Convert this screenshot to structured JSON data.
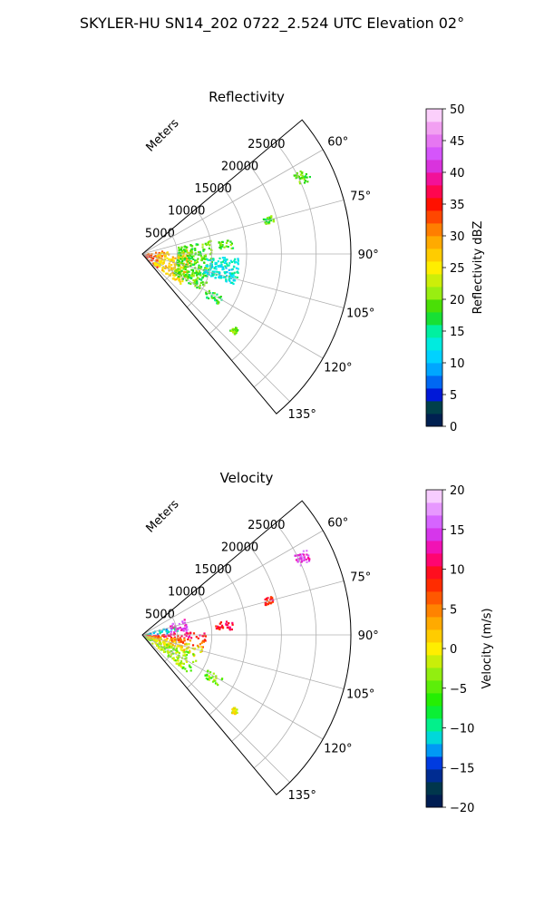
{
  "figure": {
    "suptitle": "SKYLER-HU  SN14_202  0722_2.524 UTC Elevation 02°"
  },
  "chart_data": [
    {
      "type": "polar-sector-heatmap",
      "title": "Reflectivity",
      "range_axis_label": "Meters",
      "range_ticks": [
        "5000",
        "10000",
        "15000",
        "20000",
        "25000"
      ],
      "range_tick_values": [
        5000,
        10000,
        15000,
        20000,
        25000
      ],
      "range_max": 30000,
      "azimuth_ticks": [
        "60°",
        "75°",
        "90°",
        "105°",
        "120°",
        "135°"
      ],
      "azimuth_tick_values": [
        60,
        75,
        90,
        105,
        120,
        135
      ],
      "azimuth_range": [
        50,
        140
      ],
      "grid": true,
      "colorbar": {
        "label": "Reflectivity dBZ",
        "min": 0,
        "max": 50,
        "ticks": [
          "0",
          "5",
          "10",
          "15",
          "20",
          "25",
          "30",
          "35",
          "40",
          "45",
          "50"
        ]
      },
      "echo_regions": [
        {
          "az": [
            80,
            138
          ],
          "range": [
            0,
            3000
          ],
          "value": 33
        },
        {
          "az": [
            83,
            130
          ],
          "range": [
            2000,
            7000
          ],
          "value": 27
        },
        {
          "az": [
            78,
            122
          ],
          "range": [
            5000,
            10000
          ],
          "value": 19
        },
        {
          "az": [
            92,
            108
          ],
          "range": [
            9000,
            14000
          ],
          "value": 13
        },
        {
          "az": [
            80,
            86
          ],
          "range": [
            11000,
            13000
          ],
          "value": 19
        },
        {
          "az": [
            73,
            76
          ],
          "range": [
            18000,
            19500
          ],
          "value": 19
        },
        {
          "az": [
            62,
            66
          ],
          "range": [
            24500,
            26500
          ],
          "value": 19
        },
        {
          "az": [
            118,
            124
          ],
          "range": [
            10500,
            13000
          ],
          "value": 17
        },
        {
          "az": [
            128,
            131
          ],
          "range": [
            16500,
            17500
          ],
          "value": 20
        }
      ]
    },
    {
      "type": "polar-sector-heatmap",
      "title": "Velocity",
      "range_axis_label": "Meters",
      "range_ticks": [
        "5000",
        "10000",
        "15000",
        "20000",
        "25000"
      ],
      "range_tick_values": [
        5000,
        10000,
        15000,
        20000,
        25000
      ],
      "range_max": 30000,
      "azimuth_ticks": [
        "60°",
        "75°",
        "90°",
        "105°",
        "120°",
        "135°"
      ],
      "azimuth_tick_values": [
        60,
        75,
        90,
        105,
        120,
        135
      ],
      "azimuth_range": [
        50,
        140
      ],
      "grid": true,
      "colorbar": {
        "label": "Velocity (m/s)",
        "min": -20,
        "max": 20,
        "ticks": [
          "−20",
          "−15",
          "−10",
          "−5",
          "0",
          "5",
          "10",
          "15",
          "20"
        ]
      },
      "echo_regions": [
        {
          "az": [
            70,
            85
          ],
          "range": [
            0,
            5000
          ],
          "value": -11
        },
        {
          "az": [
            68,
            84
          ],
          "range": [
            4000,
            6500
          ],
          "value": 15
        },
        {
          "az": [
            86,
            94
          ],
          "range": [
            0,
            9000
          ],
          "value": 10
        },
        {
          "az": [
            94,
            102
          ],
          "range": [
            0,
            9000
          ],
          "value": 6
        },
        {
          "az": [
            100,
            112
          ],
          "range": [
            0,
            9000
          ],
          "value": 1
        },
        {
          "az": [
            110,
            130
          ],
          "range": [
            0,
            8500
          ],
          "value": -3
        },
        {
          "az": [
            80,
            86
          ],
          "range": [
            10500,
            13000
          ],
          "value": 10
        },
        {
          "az": [
            73,
            76
          ],
          "range": [
            18000,
            19500
          ],
          "value": 8
        },
        {
          "az": [
            62,
            66
          ],
          "range": [
            24500,
            26500
          ],
          "value": 14
        },
        {
          "az": [
            118,
            124
          ],
          "range": [
            10500,
            13000
          ],
          "value": -4
        },
        {
          "az": [
            128,
            131
          ],
          "range": [
            16500,
            17500
          ],
          "value": -1
        }
      ]
    }
  ]
}
